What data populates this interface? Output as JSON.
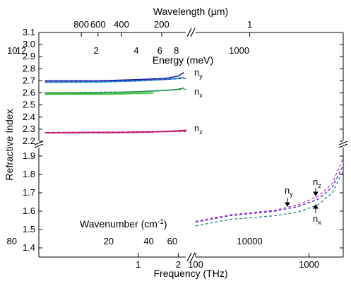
{
  "chart_data": {
    "type": "line",
    "ylabel": "Refractive Index",
    "xlabel_bottom": "Frequency (THz)",
    "xlabel_top_outer": "Wavelength (µm)",
    "xlabel_top_inner": "Energy (meV)",
    "xlabel_inner_bottom_prefix": "Wavenumber (cm",
    "xlabel_inner_bottom_exponent": "-1",
    "xlabel_inner_bottom_suffix": ")",
    "grid": false,
    "colors": {
      "ny_meas": "#1f1f9a",
      "ny_model": "#2a9fd6",
      "nx_meas": "#1f8a1f",
      "nx_model": "#36c436",
      "nz_meas": "#a0103a",
      "nz_model": "#e01a5a",
      "nz_dash": "#d62ad6",
      "ny_dash": "#2a3ad6",
      "nx_dash": "#208a8a"
    },
    "y_panels": [
      {
        "range": [
          2.2,
          3.1
        ],
        "ticks": [
          2.2,
          2.3,
          2.4,
          2.5,
          2.6,
          2.7,
          2.8,
          2.9,
          3.0,
          3.1
        ]
      },
      {
        "range": [
          1.35,
          1.95
        ],
        "ticks": [
          1.4,
          1.5,
          1.6,
          1.7,
          1.8,
          1.9
        ]
      }
    ],
    "x_segments": [
      {
        "range_thz": [
          0.18,
          2.3
        ],
        "scale": "log"
      },
      {
        "range_thz": [
          100,
          2000
        ],
        "scale": "log"
      }
    ],
    "bottom_ticks": [
      {
        "value": 1,
        "label": "1"
      },
      {
        "value": 2,
        "label": "2"
      },
      {
        "value": 100,
        "label": "100"
      },
      {
        "value": 1000,
        "label": "1000"
      }
    ],
    "top_outer_ticks": [
      {
        "value": 800,
        "label": "800"
      },
      {
        "value": 600,
        "label": "600"
      },
      {
        "value": 400,
        "label": "400"
      },
      {
        "value": 200,
        "label": "200"
      },
      {
        "value": 1,
        "label": "1"
      }
    ],
    "top_inner_ticks": [
      {
        "value": 2,
        "label": "2"
      },
      {
        "value": 4,
        "label": "4"
      },
      {
        "value": 6,
        "label": "6"
      },
      {
        "value": 8,
        "label": "8"
      },
      {
        "value": 10,
        "label": "10"
      },
      {
        "value": 12,
        "label": "12"
      },
      {
        "value": 1000,
        "label": "1000"
      }
    ],
    "inner_bottom_ticks": [
      {
        "value": 20,
        "label": "20"
      },
      {
        "value": 40,
        "label": "40"
      },
      {
        "value": 60,
        "label": "60"
      },
      {
        "value": 80,
        "label": "80"
      },
      {
        "value": 10000,
        "label": "10000"
      }
    ],
    "series": [
      {
        "label": "ny",
        "sub": "y",
        "low_meas": [
          [
            0.2,
            2.7
          ],
          [
            0.5,
            2.7
          ],
          [
            1.0,
            2.71
          ],
          [
            1.6,
            2.72
          ],
          [
            2.0,
            2.74
          ],
          [
            2.2,
            2.77
          ]
        ],
        "low_model": [
          [
            0.2,
            2.69
          ],
          [
            0.5,
            2.69
          ],
          [
            1.0,
            2.7
          ],
          [
            1.5,
            2.71
          ],
          [
            2.0,
            2.72
          ],
          [
            2.2,
            2.73
          ]
        ],
        "dash_low": [
          [
            0.2,
            2.69
          ],
          [
            1.0,
            2.7
          ],
          [
            2.3,
            2.72
          ]
        ],
        "dash_high": [
          [
            100,
            1.54
          ],
          [
            200,
            1.575
          ],
          [
            500,
            1.6
          ],
          [
            800,
            1.625
          ],
          [
            1200,
            1.665
          ],
          [
            1600,
            1.73
          ],
          [
            2000,
            1.85
          ]
        ]
      },
      {
        "label": "nx",
        "sub": "x",
        "low_meas": [
          [
            0.2,
            2.6
          ],
          [
            0.5,
            2.6
          ],
          [
            1.0,
            2.61
          ],
          [
            1.6,
            2.62
          ],
          [
            2.0,
            2.63
          ],
          [
            2.2,
            2.64
          ]
        ],
        "low_model": [
          [
            0.2,
            2.59
          ],
          [
            0.6,
            2.59
          ],
          [
            1.3,
            2.6
          ]
        ],
        "dash_low": [
          [
            0.2,
            2.6
          ],
          [
            1.0,
            2.61
          ],
          [
            2.3,
            2.63
          ]
        ],
        "dash_high": [
          [
            100,
            1.52
          ],
          [
            200,
            1.555
          ],
          [
            500,
            1.575
          ],
          [
            800,
            1.595
          ],
          [
            1200,
            1.635
          ],
          [
            1600,
            1.7
          ],
          [
            2000,
            1.82
          ]
        ]
      },
      {
        "label": "nz",
        "sub": "z",
        "low_meas": [
          [
            0.2,
            2.27
          ],
          [
            0.6,
            2.27
          ],
          [
            1.2,
            2.275
          ],
          [
            2.0,
            2.285
          ],
          [
            2.3,
            2.29
          ]
        ],
        "low_model": [
          [
            0.2,
            2.27
          ],
          [
            0.8,
            2.275
          ],
          [
            1.6,
            2.28
          ],
          [
            2.3,
            2.29
          ]
        ],
        "dash_low": [
          [
            0.2,
            2.27
          ],
          [
            1.0,
            2.275
          ],
          [
            2.3,
            2.28
          ]
        ],
        "dash_high": [
          [
            100,
            1.545
          ],
          [
            200,
            1.58
          ],
          [
            500,
            1.605
          ],
          [
            800,
            1.635
          ],
          [
            1200,
            1.68
          ],
          [
            1600,
            1.75
          ],
          [
            2000,
            1.89
          ]
        ]
      }
    ]
  }
}
